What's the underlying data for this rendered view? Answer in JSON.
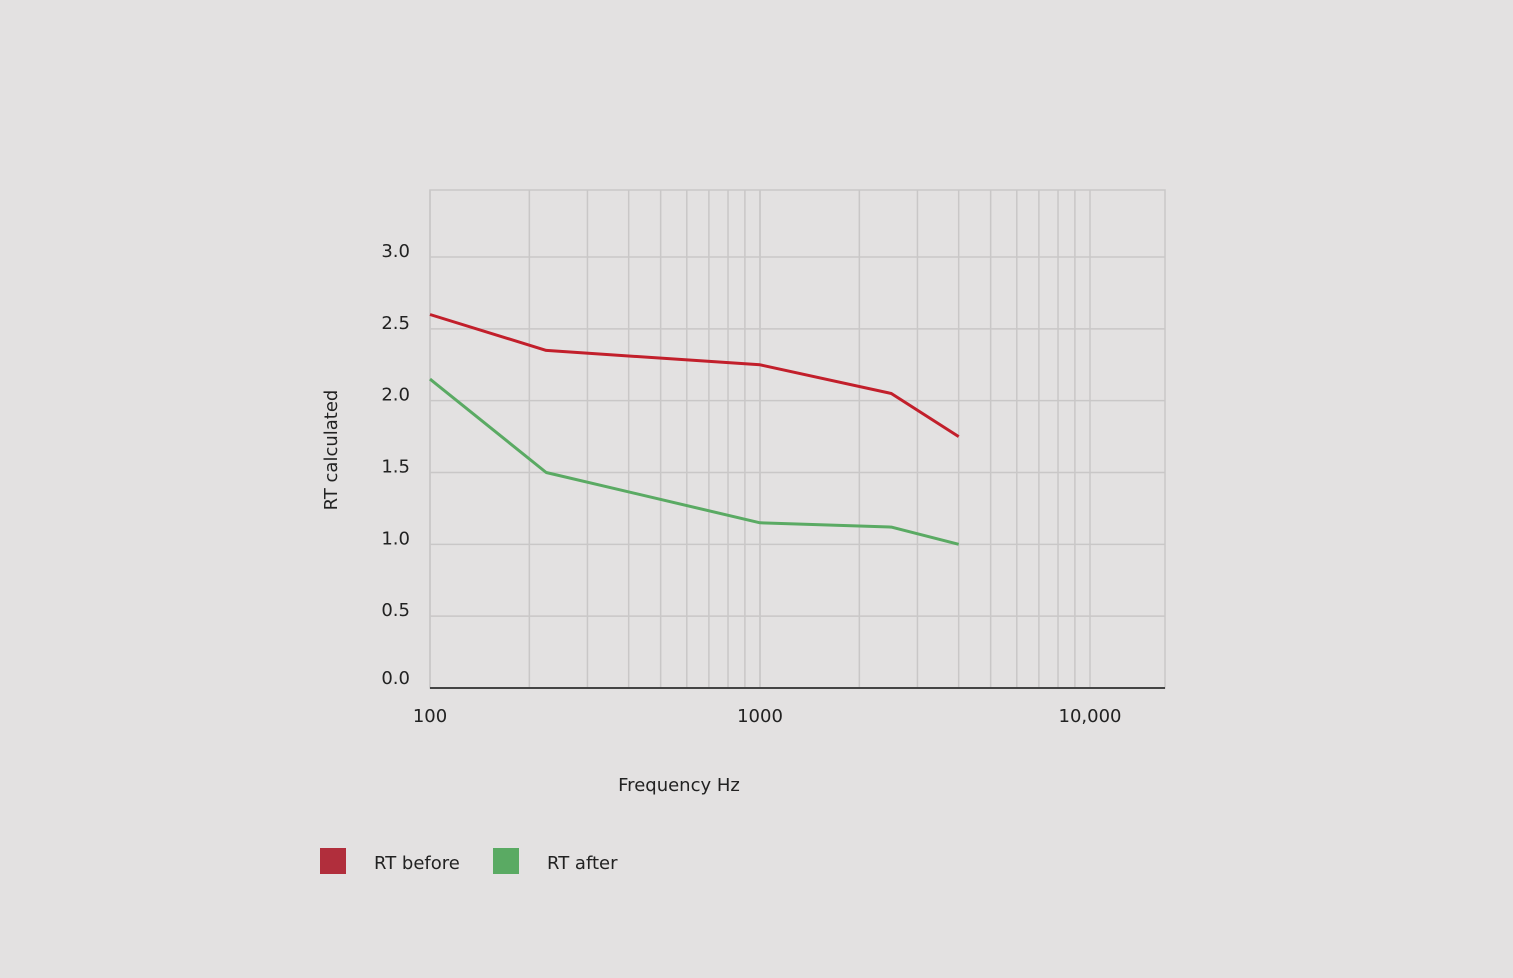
{
  "chart_data": {
    "type": "line",
    "title": "",
    "xlabel": "Frequency Hz",
    "ylabel": "RT calculated",
    "x_scale": "log",
    "xlim": [
      100,
      10000
    ],
    "ylim": [
      0,
      3.0
    ],
    "x_ticks": [
      100,
      1000,
      10000
    ],
    "x_tick_labels": [
      "100",
      "1000",
      "10,000"
    ],
    "y_ticks": [
      0.0,
      0.5,
      1.0,
      1.5,
      2.0,
      2.5,
      3.0
    ],
    "y_tick_labels": [
      "0.0",
      "0.5",
      "1.0",
      "1.5",
      "2.0",
      "2.5",
      "3.0"
    ],
    "grid": true,
    "legend_position": "bottom-left",
    "x": [
      100,
      225,
      1000,
      2500,
      4000
    ],
    "series": [
      {
        "name": "RT before",
        "color": "#c21f2b",
        "legend_color": "#b12e3c",
        "values": [
          2.6,
          2.35,
          2.25,
          2.05,
          1.75
        ]
      },
      {
        "name": "RT after",
        "color": "#5aaa63",
        "legend_color": "#5aaa63",
        "values": [
          2.15,
          1.5,
          1.15,
          1.12,
          1.0
        ]
      }
    ]
  }
}
